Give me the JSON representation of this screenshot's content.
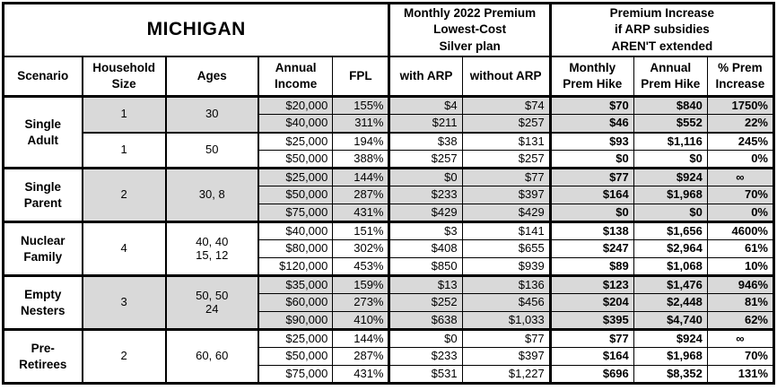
{
  "title": "MICHIGAN",
  "header_groups": {
    "premium": "Monthly 2022 Premium\nLowest-Cost\nSilver plan",
    "increase": "Premium Increase\nif ARP subsidies\nAREN'T extended"
  },
  "columns": [
    "Scenario",
    "Household\nSize",
    "Ages",
    "Annual\nIncome",
    "FPL",
    "with ARP",
    "without ARP",
    "Monthly\nPrem Hike",
    "Annual\nPrem Hike",
    "% Prem\nIncrease"
  ],
  "colors": {
    "shaded_row": "#d9d9d9",
    "border": "#000000",
    "background": "#ffffff"
  },
  "groups": [
    {
      "scenario": "Single\nAdult",
      "subgroups": [
        {
          "household_size": "1",
          "ages": "30",
          "shaded": true,
          "rows": [
            {
              "income": "$20,000",
              "fpl": "155%",
              "with_arp": "$4",
              "without_arp": "$74",
              "monthly_hike": "$70",
              "annual_hike": "$840",
              "pct_increase": "1750%"
            },
            {
              "income": "$40,000",
              "fpl": "311%",
              "with_arp": "$211",
              "without_arp": "$257",
              "monthly_hike": "$46",
              "annual_hike": "$552",
              "pct_increase": "22%"
            }
          ]
        },
        {
          "household_size": "1",
          "ages": "50",
          "shaded": false,
          "rows": [
            {
              "income": "$25,000",
              "fpl": "194%",
              "with_arp": "$38",
              "without_arp": "$131",
              "monthly_hike": "$93",
              "annual_hike": "$1,116",
              "pct_increase": "245%"
            },
            {
              "income": "$50,000",
              "fpl": "388%",
              "with_arp": "$257",
              "without_arp": "$257",
              "monthly_hike": "$0",
              "annual_hike": "$0",
              "pct_increase": "0%"
            }
          ]
        }
      ]
    },
    {
      "scenario": "Single\nParent",
      "subgroups": [
        {
          "household_size": "2",
          "ages": "30, 8",
          "shaded": true,
          "rows": [
            {
              "income": "$25,000",
              "fpl": "144%",
              "with_arp": "$0",
              "without_arp": "$77",
              "monthly_hike": "$77",
              "annual_hike": "$924",
              "pct_increase": "∞"
            },
            {
              "income": "$50,000",
              "fpl": "287%",
              "with_arp": "$233",
              "without_arp": "$397",
              "monthly_hike": "$164",
              "annual_hike": "$1,968",
              "pct_increase": "70%"
            },
            {
              "income": "$75,000",
              "fpl": "431%",
              "with_arp": "$429",
              "without_arp": "$429",
              "monthly_hike": "$0",
              "annual_hike": "$0",
              "pct_increase": "0%"
            }
          ]
        }
      ]
    },
    {
      "scenario": "Nuclear\nFamily",
      "subgroups": [
        {
          "household_size": "4",
          "ages": "40, 40\n15, 12",
          "shaded": false,
          "rows": [
            {
              "income": "$40,000",
              "fpl": "151%",
              "with_arp": "$3",
              "without_arp": "$141",
              "monthly_hike": "$138",
              "annual_hike": "$1,656",
              "pct_increase": "4600%"
            },
            {
              "income": "$80,000",
              "fpl": "302%",
              "with_arp": "$408",
              "without_arp": "$655",
              "monthly_hike": "$247",
              "annual_hike": "$2,964",
              "pct_increase": "61%"
            },
            {
              "income": "$120,000",
              "fpl": "453%",
              "with_arp": "$850",
              "without_arp": "$939",
              "monthly_hike": "$89",
              "annual_hike": "$1,068",
              "pct_increase": "10%"
            }
          ]
        }
      ]
    },
    {
      "scenario": "Empty\nNesters",
      "subgroups": [
        {
          "household_size": "3",
          "ages": "50, 50\n24",
          "shaded": true,
          "rows": [
            {
              "income": "$35,000",
              "fpl": "159%",
              "with_arp": "$13",
              "without_arp": "$136",
              "monthly_hike": "$123",
              "annual_hike": "$1,476",
              "pct_increase": "946%"
            },
            {
              "income": "$60,000",
              "fpl": "273%",
              "with_arp": "$252",
              "without_arp": "$456",
              "monthly_hike": "$204",
              "annual_hike": "$2,448",
              "pct_increase": "81%"
            },
            {
              "income": "$90,000",
              "fpl": "410%",
              "with_arp": "$638",
              "without_arp": "$1,033",
              "monthly_hike": "$395",
              "annual_hike": "$4,740",
              "pct_increase": "62%"
            }
          ]
        }
      ]
    },
    {
      "scenario": "Pre-\nRetirees",
      "subgroups": [
        {
          "household_size": "2",
          "ages": "60, 60",
          "shaded": false,
          "rows": [
            {
              "income": "$25,000",
              "fpl": "144%",
              "with_arp": "$0",
              "without_arp": "$77",
              "monthly_hike": "$77",
              "annual_hike": "$924",
              "pct_increase": "∞"
            },
            {
              "income": "$50,000",
              "fpl": "287%",
              "with_arp": "$233",
              "without_arp": "$397",
              "monthly_hike": "$164",
              "annual_hike": "$1,968",
              "pct_increase": "70%"
            },
            {
              "income": "$75,000",
              "fpl": "431%",
              "with_arp": "$531",
              "without_arp": "$1,227",
              "monthly_hike": "$696",
              "annual_hike": "$8,352",
              "pct_increase": "131%"
            }
          ]
        }
      ]
    }
  ],
  "chart_data": {
    "type": "table",
    "title": "MICHIGAN",
    "column_groups": [
      "Monthly 2022 Premium Lowest-Cost Silver plan",
      "Premium Increase if ARP subsidies AREN'T extended"
    ],
    "columns": [
      "Scenario",
      "Household Size",
      "Ages",
      "Annual Income",
      "FPL",
      "with ARP",
      "without ARP",
      "Monthly Prem Hike",
      "Annual Prem Hike",
      "% Prem Increase"
    ],
    "rows": [
      [
        "Single Adult",
        "1",
        "30",
        "$20,000",
        "155%",
        "$4",
        "$74",
        "$70",
        "$840",
        "1750%"
      ],
      [
        "Single Adult",
        "1",
        "30",
        "$40,000",
        "311%",
        "$211",
        "$257",
        "$46",
        "$552",
        "22%"
      ],
      [
        "Single Adult",
        "1",
        "50",
        "$25,000",
        "194%",
        "$38",
        "$131",
        "$93",
        "$1,116",
        "245%"
      ],
      [
        "Single Adult",
        "1",
        "50",
        "$50,000",
        "388%",
        "$257",
        "$257",
        "$0",
        "$0",
        "0%"
      ],
      [
        "Single Parent",
        "2",
        "30, 8",
        "$25,000",
        "144%",
        "$0",
        "$77",
        "$77",
        "$924",
        "∞"
      ],
      [
        "Single Parent",
        "2",
        "30, 8",
        "$50,000",
        "287%",
        "$233",
        "$397",
        "$164",
        "$1,968",
        "70%"
      ],
      [
        "Single Parent",
        "2",
        "30, 8",
        "$75,000",
        "431%",
        "$429",
        "$429",
        "$0",
        "$0",
        "0%"
      ],
      [
        "Nuclear Family",
        "4",
        "40, 40, 15, 12",
        "$40,000",
        "151%",
        "$3",
        "$141",
        "$138",
        "$1,656",
        "4600%"
      ],
      [
        "Nuclear Family",
        "4",
        "40, 40, 15, 12",
        "$80,000",
        "302%",
        "$408",
        "$655",
        "$247",
        "$2,964",
        "61%"
      ],
      [
        "Nuclear Family",
        "4",
        "40, 40, 15, 12",
        "$120,000",
        "453%",
        "$850",
        "$939",
        "$89",
        "$1,068",
        "10%"
      ],
      [
        "Empty Nesters",
        "3",
        "50, 50, 24",
        "$35,000",
        "159%",
        "$13",
        "$136",
        "$123",
        "$1,476",
        "946%"
      ],
      [
        "Empty Nesters",
        "3",
        "50, 50, 24",
        "$60,000",
        "273%",
        "$252",
        "$456",
        "$204",
        "$2,448",
        "81%"
      ],
      [
        "Empty Nesters",
        "3",
        "50, 50, 24",
        "$90,000",
        "410%",
        "$638",
        "$1,033",
        "$395",
        "$4,740",
        "62%"
      ],
      [
        "Pre-Retirees",
        "2",
        "60, 60",
        "$25,000",
        "144%",
        "$0",
        "$77",
        "$77",
        "$924",
        "∞"
      ],
      [
        "Pre-Retirees",
        "2",
        "60, 60",
        "$50,000",
        "287%",
        "$233",
        "$397",
        "$164",
        "$1,968",
        "70%"
      ],
      [
        "Pre-Retirees",
        "2",
        "60, 60",
        "$75,000",
        "431%",
        "$531",
        "$1,227",
        "$696",
        "$8,352",
        "131%"
      ]
    ]
  }
}
